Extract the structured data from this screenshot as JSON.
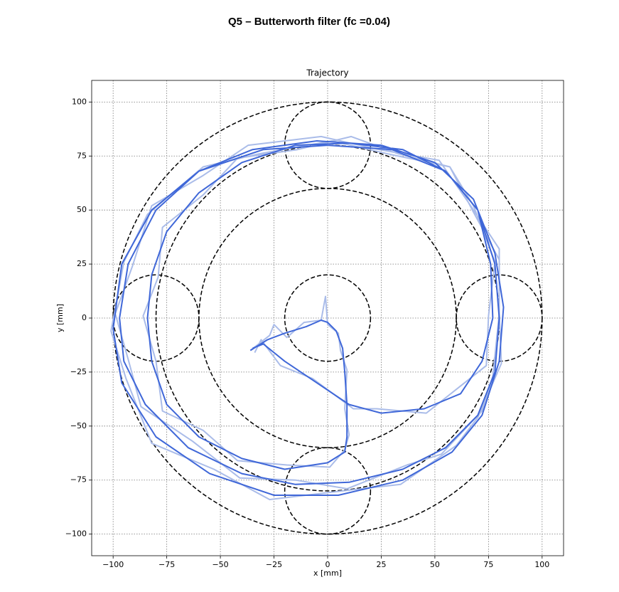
{
  "chart_data": {
    "type": "line",
    "suptitle": "Q5 – Butterworth filter (fc =0.04)",
    "title": "Trajectory",
    "x_label": "x [mm]",
    "y_label": "y [mm]",
    "xlim": [
      -110,
      110
    ],
    "ylim": [
      -110,
      110
    ],
    "xticks": [
      {
        "value": -100,
        "label": "−100"
      },
      {
        "value": -75,
        "label": "−75"
      },
      {
        "value": -50,
        "label": "−50"
      },
      {
        "value": -25,
        "label": "−25"
      },
      0,
      25,
      50,
      75,
      100
    ],
    "yticks": [
      {
        "value": -100,
        "label": "−100"
      },
      {
        "value": -75,
        "label": "−75"
      },
      {
        "value": -50,
        "label": "−50"
      },
      {
        "value": -25,
        "label": "−25"
      },
      0,
      25,
      50,
      75,
      100
    ],
    "grid": true,
    "circles": [
      {
        "x": 0,
        "y": 0,
        "r": 100
      },
      {
        "x": 0,
        "y": 0,
        "r": 80
      },
      {
        "x": 0,
        "y": 0,
        "r": 60
      },
      {
        "x": 0,
        "y": 0,
        "r": 20
      },
      {
        "x": 0,
        "y": 80,
        "r": 20
      },
      {
        "x": 80,
        "y": 0,
        "r": 20
      },
      {
        "x": 0,
        "y": -80,
        "r": 20
      },
      {
        "x": -80,
        "y": 0,
        "r": 20
      }
    ],
    "series": [
      {
        "color": "#aabce9",
        "width": 2,
        "x": [
          -36,
          -27,
          -25,
          -19,
          -11,
          -3,
          -1,
          0,
          5,
          6,
          9,
          8,
          10,
          8,
          1,
          -19,
          -42,
          -58,
          -77,
          -80,
          -86,
          -79,
          -77,
          -58,
          -42,
          -14,
          11,
          33,
          57,
          68,
          80,
          80,
          77,
          72,
          53,
          37,
          9,
          -15,
          -41,
          -63,
          -87,
          -93,
          -99,
          -91,
          -82,
          -58,
          -37,
          -3,
          24,
          52,
          66,
          80,
          80,
          81,
          70,
          60,
          34,
          7,
          -27,
          -53,
          -82,
          -94,
          -101,
          -95,
          -84,
          -58,
          -32,
          2,
          28,
          57,
          68,
          78,
          75,
          74,
          60,
          46,
          23,
          12,
          -7,
          -22,
          -31,
          -34
        ],
        "y": [
          -15,
          -8,
          -3,
          -9,
          -2,
          -1,
          10,
          -3,
          -7,
          -15,
          -24,
          -42,
          -54,
          -61,
          -69,
          -68,
          -66,
          -52,
          -43,
          -20,
          1,
          19,
          42,
          57,
          74,
          78,
          84,
          76,
          70,
          49,
          27,
          2,
          -27,
          -43,
          -63,
          -68,
          -79,
          -75,
          -74,
          -57,
          -41,
          -19,
          2,
          24,
          52,
          66,
          80,
          84,
          78,
          73,
          53,
          32,
          3,
          -21,
          -46,
          -59,
          -77,
          -80,
          -84,
          -70,
          -58,
          -28,
          -6,
          26,
          48,
          70,
          76,
          82,
          76,
          70,
          52,
          26,
          1,
          -22,
          -33,
          -44,
          -42,
          -42,
          -28,
          -22,
          -10,
          -16
        ]
      },
      {
        "color": "#3f67d8",
        "width": 2,
        "x": [
          -36,
          -28,
          -20,
          -10,
          -3,
          0,
          4,
          7,
          8,
          9,
          9,
          8,
          0,
          -20,
          -40,
          -60,
          -75,
          -82,
          -84,
          -82,
          -75,
          -60,
          -40,
          -15,
          10,
          35,
          55,
          70,
          78,
          80,
          78,
          70,
          55,
          35,
          10,
          -15,
          -40,
          -65,
          -85,
          -95,
          -97,
          -93,
          -80,
          -60,
          -35,
          -5,
          25,
          50,
          68,
          78,
          82,
          80,
          72,
          58,
          35,
          5,
          -25,
          -55,
          -80,
          -96,
          -100,
          -96,
          -82,
          -60,
          -30,
          0,
          30,
          55,
          70,
          76,
          77,
          72,
          62,
          45,
          25,
          10,
          -5,
          -20,
          -30,
          -35
        ],
        "y": [
          -15,
          -10,
          -7,
          -4,
          -1,
          -2,
          -6,
          -14,
          -25,
          -40,
          -55,
          -62,
          -67,
          -70,
          -65,
          -55,
          -40,
          -20,
          0,
          20,
          40,
          58,
          72,
          80,
          81,
          78,
          68,
          50,
          25,
          0,
          -25,
          -45,
          -60,
          -70,
          -76,
          -77,
          -72,
          -60,
          -40,
          -20,
          0,
          25,
          50,
          68,
          78,
          82,
          80,
          72,
          55,
          30,
          5,
          -20,
          -45,
          -62,
          -75,
          -82,
          -82,
          -72,
          -55,
          -30,
          -5,
          25,
          50,
          68,
          78,
          80,
          78,
          68,
          50,
          25,
          0,
          -20,
          -35,
          -42,
          -44,
          -40,
          -30,
          -20,
          -12,
          -14
        ]
      }
    ]
  }
}
